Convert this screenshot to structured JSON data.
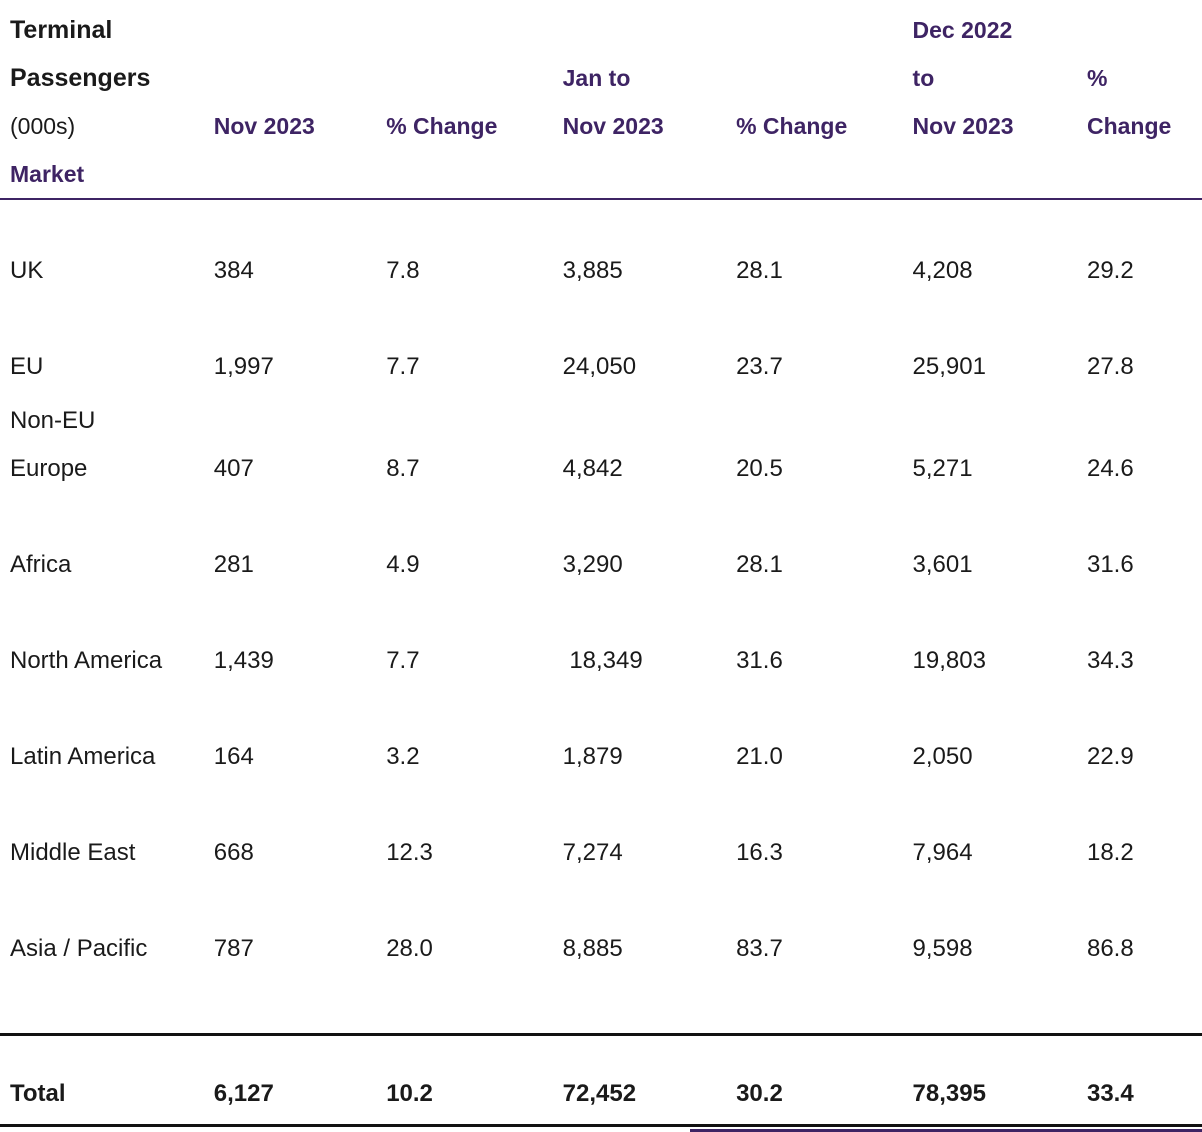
{
  "header": {
    "title": "Terminal\nPassengers",
    "unit": "(000s)",
    "market_label": "Market",
    "columns": [
      "Nov 2023",
      "% Change",
      "Jan to\nNov 2023",
      "% Change",
      "Dec 2022\nto\nNov 2023",
      "%\nChange"
    ]
  },
  "rows": [
    {
      "market": "UK",
      "values": [
        "384",
        "7.8",
        "3,885",
        "28.1",
        "4,208",
        "29.2"
      ]
    },
    {
      "market": "EU",
      "values": [
        "1,997",
        "7.7",
        "24,050",
        "23.7",
        "25,901",
        "27.8"
      ]
    },
    {
      "market": "Non-EU\nEurope",
      "values": [
        "407",
        "8.7",
        "4,842",
        "20.5",
        "5,271",
        "24.6"
      ]
    },
    {
      "market": "Africa",
      "values": [
        "281",
        "4.9",
        "3,290",
        "28.1",
        "3,601",
        "31.6"
      ]
    },
    {
      "market": "North America",
      "values": [
        "1,439",
        "7.7",
        " 18,349",
        "31.6",
        "19,803",
        "34.3"
      ]
    },
    {
      "market": "Latin America",
      "values": [
        "164",
        "3.2",
        "1,879",
        "21.0",
        "2,050",
        "22.9"
      ]
    },
    {
      "market": "Middle East",
      "values": [
        "668",
        "12.3",
        "7,274",
        "16.3",
        "7,964",
        "18.2"
      ]
    },
    {
      "market": "Asia / Pacific",
      "values": [
        "787",
        "28.0",
        "8,885",
        "83.7",
        "9,598",
        "86.8"
      ]
    }
  ],
  "total": {
    "market": "Total",
    "values": [
      "6,127",
      "10.2",
      "72,452",
      "30.2",
      "78,395",
      "33.4"
    ]
  },
  "colors": {
    "accent_purple": "#3e2464",
    "text_black": "#1a1a1a",
    "rule_black": "#111111"
  }
}
